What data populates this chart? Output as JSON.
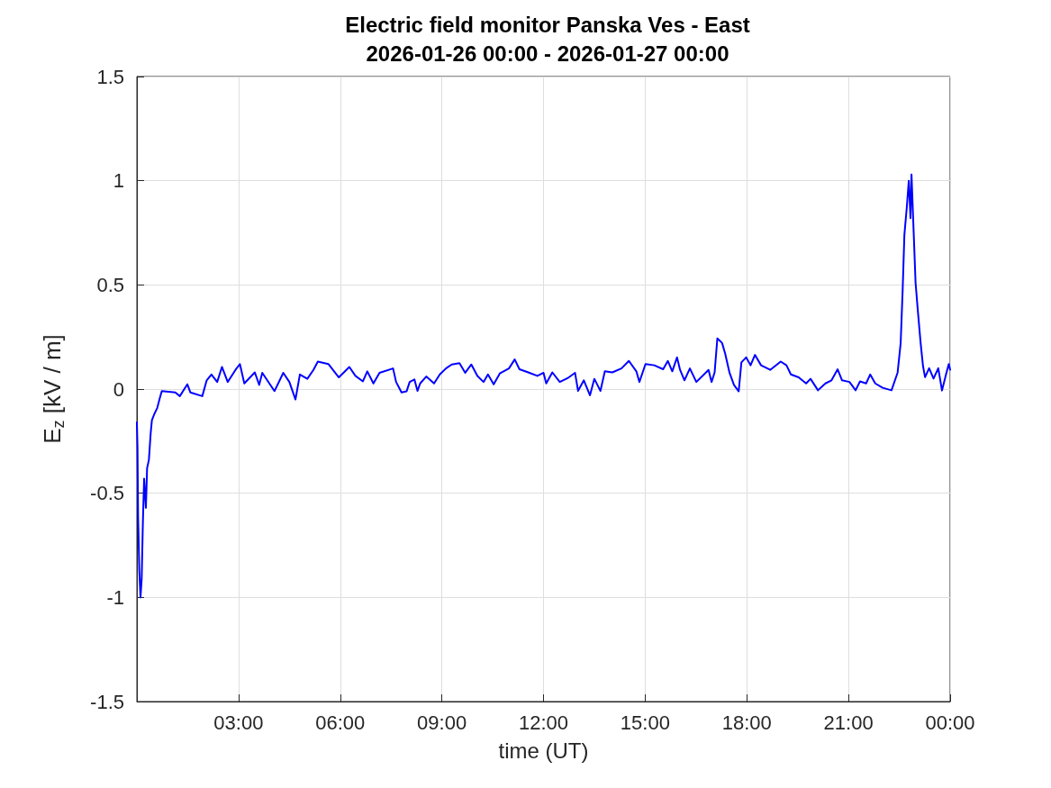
{
  "chart_data": {
    "type": "line",
    "title": "Electric field monitor Panska Ves - East",
    "subtitle": "2026-01-26 00:00 - 2026-01-27 00:00",
    "xlabel": "time (UT)",
    "ylabel": "E$_{z}$ [kV / m]",
    "xlim": [
      0,
      24
    ],
    "xticks": [
      {
        "value": 3,
        "label": "03:00"
      },
      {
        "value": 6,
        "label": "06:00"
      },
      {
        "value": 9,
        "label": "09:00"
      },
      {
        "value": 12,
        "label": "12:00"
      },
      {
        "value": 15,
        "label": "15:00"
      },
      {
        "value": 18,
        "label": "18:00"
      },
      {
        "value": 21,
        "label": "21:00"
      },
      {
        "value": 24,
        "label": "00:00"
      }
    ],
    "ylim": [
      -1.5,
      1.5
    ],
    "yticks": [
      -1.5,
      -1,
      -0.5,
      0,
      0.5,
      1,
      1.5
    ],
    "grid": true,
    "marker": "none",
    "line_style": "solid",
    "series": [
      {
        "color": "#0000ff",
        "x": [
          0,
          0.018,
          0.035,
          0.071,
          0.106,
          0.142,
          0.177,
          0.213,
          0.266,
          0.301,
          0.354,
          0.408,
          0.443,
          0.514,
          0.602,
          0.673,
          0.735,
          1.134,
          1.267,
          1.488,
          1.577,
          1.93,
          2.06,
          2.2,
          2.37,
          2.51,
          2.68,
          2.91,
          3.04,
          3.17,
          3.48,
          3.61,
          3.7,
          4.06,
          4.32,
          4.5,
          4.68,
          4.81,
          5.03,
          5.21,
          5.34,
          5.65,
          5.96,
          6.27,
          6.45,
          6.67,
          6.8,
          6.98,
          7.16,
          7.56,
          7.65,
          7.81,
          7.96,
          8.05,
          8.19,
          8.28,
          8.36,
          8.54,
          8.77,
          8.94,
          9.12,
          9.29,
          9.52,
          9.69,
          9.87,
          10.05,
          10.23,
          10.36,
          10.53,
          10.71,
          10.98,
          11.15,
          11.29,
          11.55,
          11.82,
          12.0,
          12.08,
          12.26,
          12.48,
          12.71,
          12.93,
          13.02,
          13.19,
          13.37,
          13.5,
          13.68,
          13.81,
          14.03,
          14.3,
          14.52,
          14.74,
          14.83,
          15.01,
          15.27,
          15.53,
          15.67,
          15.8,
          15.94,
          16.03,
          16.16,
          16.32,
          16.51,
          16.69,
          16.87,
          16.96,
          17.05,
          17.13,
          17.27,
          17.36,
          17.49,
          17.62,
          17.76,
          17.84,
          17.98,
          18.11,
          18.24,
          18.42,
          18.69,
          19.0,
          19.17,
          19.3,
          19.53,
          19.75,
          19.88,
          20.1,
          20.32,
          20.5,
          20.68,
          20.81,
          21.03,
          21.21,
          21.34,
          21.52,
          21.64,
          21.79,
          22.01,
          22.27,
          22.45,
          22.54,
          22.6,
          22.65,
          22.72,
          22.78,
          22.83,
          22.86,
          22.92,
          22.98,
          23.05,
          23.13,
          23.2,
          23.26,
          23.38,
          23.51,
          23.65,
          23.76,
          23.87,
          23.96,
          24.0
        ],
        "values": [
          -0.16,
          -0.28,
          -0.61,
          -0.87,
          -1.0,
          -0.91,
          -0.64,
          -0.43,
          -0.57,
          -0.38,
          -0.34,
          -0.21,
          -0.15,
          -0.12,
          -0.09,
          -0.045,
          -0.01,
          -0.016,
          -0.034,
          0.023,
          -0.016,
          -0.034,
          0.042,
          0.07,
          0.034,
          0.106,
          0.034,
          0.092,
          0.12,
          0.027,
          0.08,
          0.02,
          0.078,
          -0.01,
          0.078,
          0.034,
          -0.05,
          0.07,
          0.049,
          0.092,
          0.132,
          0.12,
          0.056,
          0.106,
          0.063,
          0.037,
          0.085,
          0.027,
          0.078,
          0.099,
          0.034,
          -0.016,
          -0.011,
          0.034,
          0.046,
          -0.009,
          0.027,
          0.06,
          0.027,
          0.07,
          0.099,
          0.118,
          0.124,
          0.078,
          0.118,
          0.063,
          0.034,
          0.07,
          0.023,
          0.075,
          0.099,
          0.142,
          0.095,
          0.08,
          0.063,
          0.078,
          0.027,
          0.08,
          0.034,
          0.052,
          0.078,
          -0.009,
          0.042,
          -0.03,
          0.049,
          -0.009,
          0.085,
          0.08,
          0.099,
          0.135,
          0.085,
          0.034,
          0.12,
          0.114,
          0.095,
          0.135,
          0.085,
          0.152,
          0.092,
          0.042,
          0.099,
          0.034,
          0.063,
          0.092,
          0.034,
          0.08,
          0.243,
          0.221,
          0.171,
          0.078,
          0.02,
          -0.011,
          0.128,
          0.152,
          0.114,
          0.164,
          0.114,
          0.092,
          0.132,
          0.114,
          0.07,
          0.056,
          0.027,
          0.049,
          -0.006,
          0.027,
          0.042,
          0.095,
          0.042,
          0.034,
          -0.006,
          0.037,
          0.027,
          0.07,
          0.027,
          0.006,
          -0.006,
          0.079,
          0.22,
          0.48,
          0.74,
          0.87,
          1.0,
          0.82,
          1.03,
          0.77,
          0.51,
          0.37,
          0.22,
          0.11,
          0.057,
          0.1,
          0.05,
          0.1,
          -0.007,
          0.065,
          0.12,
          0.093
        ]
      }
    ]
  }
}
